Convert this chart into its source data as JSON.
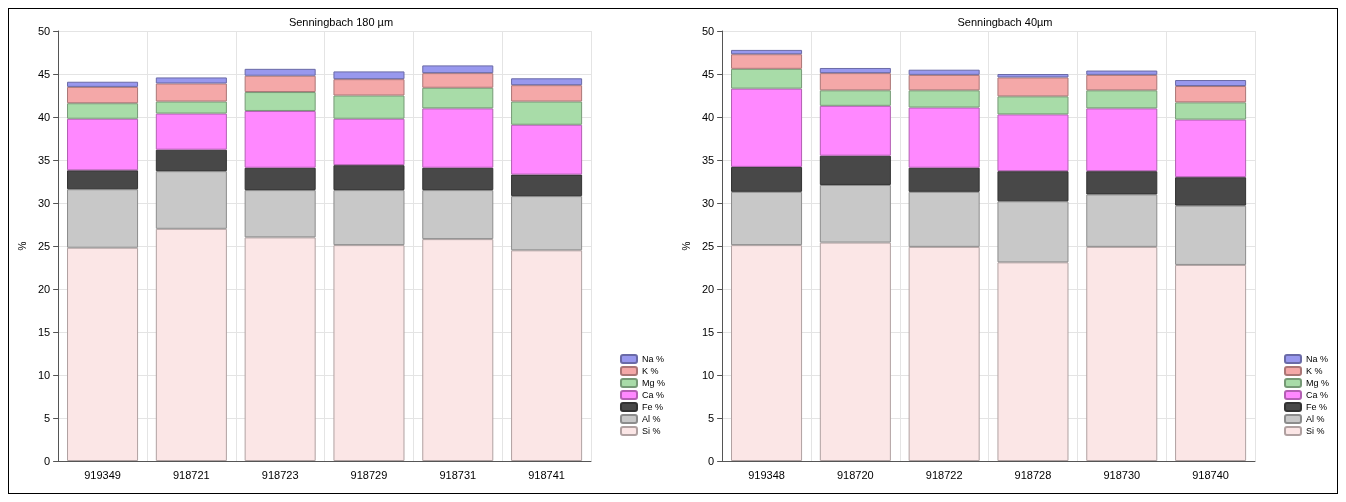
{
  "chart_data": [
    {
      "type": "bar",
      "stacked": true,
      "title": "Senningbach 180 µm",
      "ylabel": "%",
      "categories": [
        "919349",
        "918721",
        "918723",
        "918729",
        "918731",
        "918741"
      ],
      "ylim": [
        0,
        50
      ],
      "yticks": [
        0,
        5,
        10,
        15,
        20,
        25,
        30,
        35,
        40,
        45,
        50
      ],
      "grid": true,
      "legend": "bottom right",
      "series": [
        {
          "name": "Si %",
          "color": "#fbe6e6",
          "values": [
            24.8,
            27.0,
            26.0,
            25.1,
            25.8,
            24.5
          ]
        },
        {
          "name": "Al %",
          "color": "#c8c8c8",
          "values": [
            6.8,
            6.7,
            5.5,
            6.4,
            5.7,
            6.3
          ]
        },
        {
          "name": "Fe %",
          "color": "#484848",
          "values": [
            2.2,
            2.5,
            2.6,
            2.9,
            2.6,
            2.5
          ]
        },
        {
          "name": "Ca %",
          "color": "#ff88ff",
          "values": [
            6.0,
            4.2,
            6.6,
            5.4,
            6.9,
            5.8
          ]
        },
        {
          "name": "Mg %",
          "color": "#a8dca8",
          "values": [
            1.8,
            1.4,
            2.2,
            2.7,
            2.4,
            2.7
          ]
        },
        {
          "name": "K %",
          "color": "#f4a8a8",
          "values": [
            1.9,
            2.1,
            1.9,
            1.9,
            1.7,
            1.9
          ]
        },
        {
          "name": "Na %",
          "color": "#9898ee",
          "values": [
            0.6,
            0.7,
            0.8,
            0.9,
            0.9,
            0.8
          ]
        }
      ]
    },
    {
      "type": "bar",
      "stacked": true,
      "title": "Senningbach 40µm",
      "ylabel": "%",
      "categories": [
        "919348",
        "918720",
        "918722",
        "918728",
        "918730",
        "918740"
      ],
      "ylim": [
        0,
        50
      ],
      "yticks": [
        0,
        5,
        10,
        15,
        20,
        25,
        30,
        35,
        40,
        45,
        50
      ],
      "grid": true,
      "legend": "bottom right",
      "series": [
        {
          "name": "Si %",
          "color": "#fbe6e6",
          "values": [
            25.1,
            25.4,
            24.9,
            23.1,
            24.9,
            22.8
          ]
        },
        {
          "name": "Al %",
          "color": "#c8c8c8",
          "values": [
            6.2,
            6.7,
            6.4,
            7.1,
            6.1,
            6.9
          ]
        },
        {
          "name": "Fe %",
          "color": "#484848",
          "values": [
            2.9,
            3.4,
            2.8,
            3.5,
            2.7,
            3.3
          ]
        },
        {
          "name": "Ca %",
          "color": "#ff88ff",
          "values": [
            9.1,
            5.8,
            7.0,
            6.6,
            7.3,
            6.7
          ]
        },
        {
          "name": "Mg %",
          "color": "#a8dca8",
          "values": [
            2.3,
            1.8,
            2.0,
            2.1,
            2.1,
            2.0
          ]
        },
        {
          "name": "K %",
          "color": "#f4a8a8",
          "values": [
            1.7,
            2.0,
            1.8,
            2.2,
            1.8,
            1.9
          ]
        },
        {
          "name": "Na %",
          "color": "#9898ee",
          "values": [
            0.5,
            0.6,
            0.6,
            0.4,
            0.5,
            0.7
          ]
        }
      ]
    }
  ]
}
